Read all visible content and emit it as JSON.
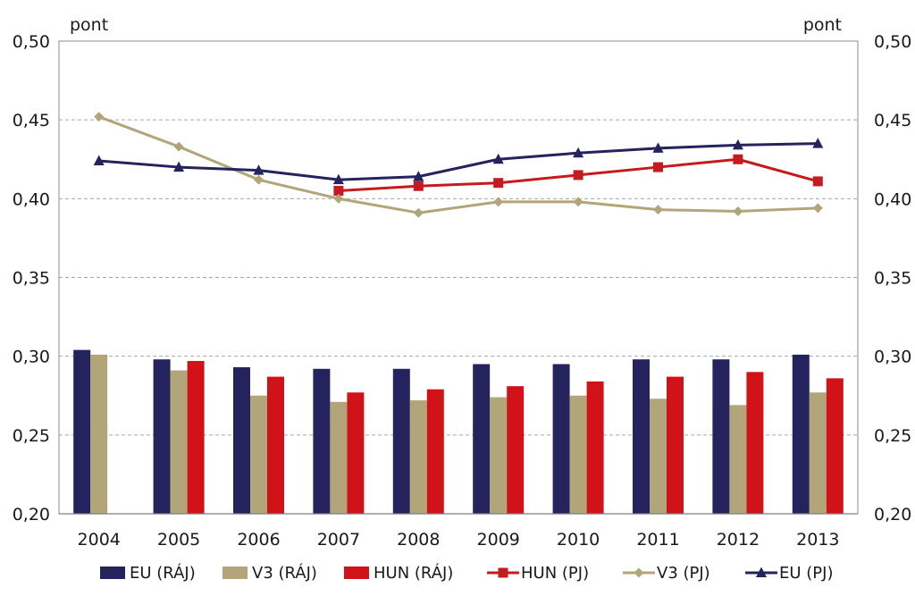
{
  "chart_data": {
    "type": "bar",
    "categories": [
      "2004",
      "2005",
      "2006",
      "2007",
      "2008",
      "2009",
      "2010",
      "2011",
      "2012",
      "2013"
    ],
    "y_left_unit": "pont",
    "y_right_unit": "pont",
    "ylim": [
      0.2,
      0.5
    ],
    "yticks": [
      "0,20",
      "0,25",
      "0,30",
      "0,35",
      "0,40",
      "0,45",
      "0,50"
    ],
    "grid": "horizontal dashed",
    "legend_position": "bottom",
    "bar_series": [
      {
        "name": "EU (RÁJ)",
        "color": "#24235e",
        "values": [
          0.304,
          0.298,
          0.293,
          0.292,
          0.292,
          0.295,
          0.295,
          0.298,
          0.298,
          0.301
        ]
      },
      {
        "name": "V3 (RÁJ)",
        "color": "#b3a57a",
        "values": [
          0.301,
          0.291,
          0.275,
          0.271,
          0.272,
          0.274,
          0.275,
          0.273,
          0.269,
          0.277
        ]
      },
      {
        "name": "HUN (RÁJ)",
        "color": "#d11218",
        "values": [
          null,
          0.297,
          0.287,
          0.277,
          0.279,
          0.281,
          0.284,
          0.287,
          0.29,
          0.286
        ]
      }
    ],
    "line_series": [
      {
        "name": "HUN (PJ)",
        "color": "#c41b1f",
        "marker": "square",
        "values": [
          null,
          null,
          null,
          0.405,
          0.408,
          0.41,
          0.415,
          0.42,
          0.425,
          0.411
        ]
      },
      {
        "name": "V3 (PJ)",
        "color": "#b3a57a",
        "marker": "diamond",
        "values": [
          0.452,
          0.433,
          0.412,
          0.4,
          0.391,
          0.398,
          0.398,
          0.393,
          0.392,
          0.394
        ]
      },
      {
        "name": "EU (PJ)",
        "color": "#24235e",
        "marker": "triangle",
        "values": [
          0.424,
          0.42,
          0.418,
          0.412,
          0.414,
          0.425,
          0.429,
          0.432,
          0.434,
          0.435
        ]
      }
    ],
    "legend": [
      "EU (RÁJ)",
      "V3 (RÁJ)",
      "HUN (RÁJ)",
      "HUN (PJ)",
      "V3 (PJ)",
      "EU (PJ)"
    ]
  }
}
